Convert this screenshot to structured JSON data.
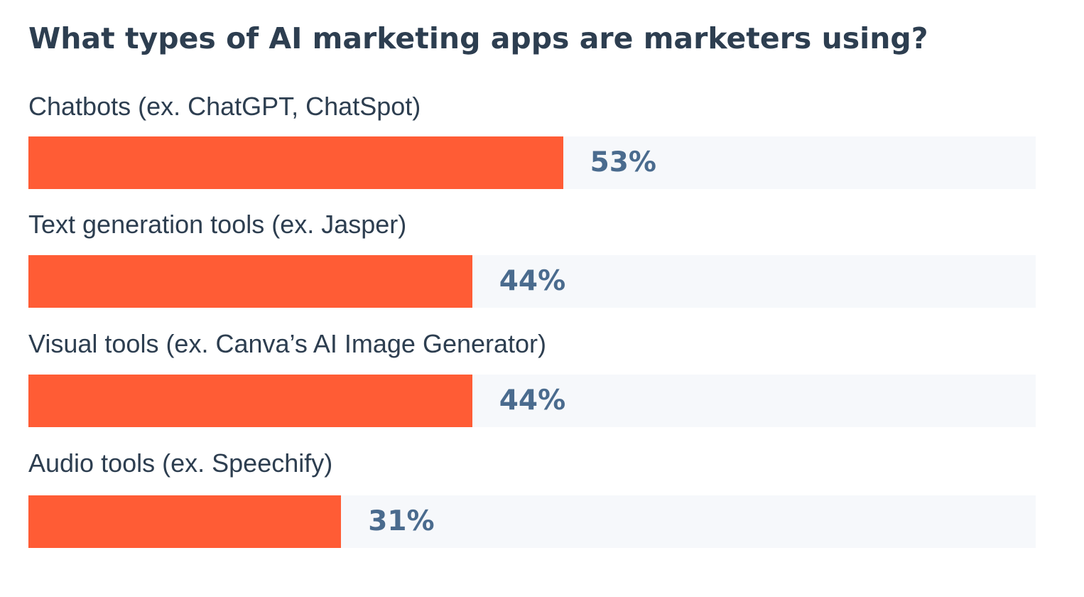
{
  "chart_data": {
    "type": "bar",
    "orientation": "horizontal",
    "title": "What types of AI marketing apps are marketers using?",
    "categories": [
      "Chatbots (ex. ChatGPT, ChatSpot)",
      "Text generation tools (ex. Jasper)",
      "Visual tools (ex. Canva’s AI Image Generator)",
      "Audio tools (ex. Speechify)"
    ],
    "values": [
      53,
      44,
      44,
      31
    ],
    "value_labels": [
      "53%",
      "44%",
      "44%",
      "31%"
    ],
    "xlim": [
      0,
      100
    ],
    "grid": false,
    "colors": {
      "bar": "#ff5c35",
      "track": "#f6f8fb",
      "value_text": "#4a6b8e",
      "title_text": "#2d3e50"
    }
  }
}
